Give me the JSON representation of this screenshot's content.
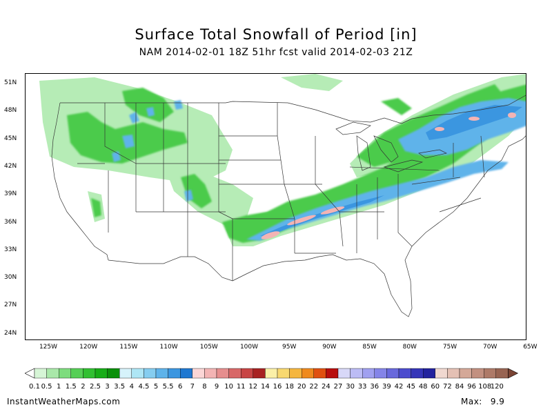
{
  "header": {
    "title": "Surface Total Snowfall of Period [in]",
    "subtitle": "NAM 2014-02-01 18Z 51hr fcst valid 2014-02-03 21Z"
  },
  "axes": {
    "latitudes": [
      "51N",
      "48N",
      "45N",
      "42N",
      "39N",
      "36N",
      "33N",
      "30N",
      "27N",
      "24N"
    ],
    "longitudes": [
      "125W",
      "120W",
      "115W",
      "110W",
      "105W",
      "100W",
      "95W",
      "90W",
      "85W",
      "80W",
      "75W",
      "70W",
      "65W"
    ]
  },
  "legend": {
    "labels": [
      "0.1",
      "0.5",
      "1",
      "1.5",
      "2",
      "2.5",
      "3",
      "3.5",
      "4",
      "4.5",
      "5",
      "5.5",
      "6",
      "7",
      "8",
      "9",
      "10",
      "11",
      "12",
      "14",
      "16",
      "18",
      "20",
      "22",
      "24",
      "27",
      "30",
      "33",
      "36",
      "39",
      "42",
      "45",
      "48",
      "60",
      "72",
      "84",
      "96",
      "108",
      "120"
    ],
    "colors": [
      "#d6f5d6",
      "#a9e8a9",
      "#7ddc7d",
      "#56cf56",
      "#32c032",
      "#17ad17",
      "#0a900a",
      "#d6f3fb",
      "#aee6f5",
      "#85cdf0",
      "#5eb3ea",
      "#3b96e0",
      "#1f78d1",
      "#fbd6d6",
      "#f3b4b4",
      "#e68e8e",
      "#d86868",
      "#c84545",
      "#a82222",
      "#fbf0a8",
      "#f8d870",
      "#f5b640",
      "#ef8a1e",
      "#e05010",
      "#b80e0e",
      "#d8d8f8",
      "#bcbcf5",
      "#a0a0f0",
      "#8484e8",
      "#6868dc",
      "#4c4cce",
      "#3535b8",
      "#22229e",
      "#f0d8d0",
      "#e4c0b4",
      "#d4a898",
      "#c29080",
      "#ae7a68",
      "#986452"
    ],
    "under_color": "#ffffff",
    "over_color": "#7a4434"
  },
  "footer": {
    "source": "InstantWeatherMaps.com",
    "max_label": "Max:",
    "max_value": "9.9"
  }
}
